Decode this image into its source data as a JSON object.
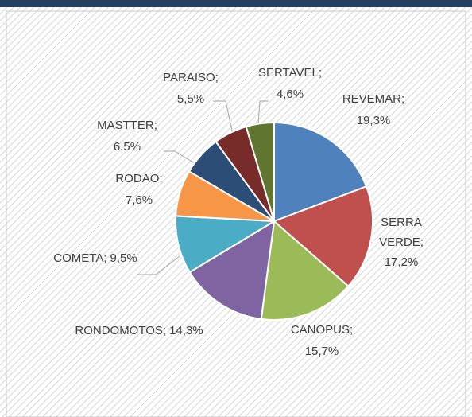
{
  "chart_data": {
    "type": "pie",
    "categories": [
      "REVEMAR;",
      "SERRA VERDE;",
      "CANOPUS;",
      "RONDOMOTOS;",
      "COMETA;",
      "RODAO;",
      "MASTTER;",
      "PARAISO;",
      "SERTAVEL;"
    ],
    "values": [
      19.3,
      17.2,
      15.7,
      14.3,
      9.5,
      7.6,
      6.5,
      5.5,
      4.6
    ],
    "value_labels": [
      "19,3%",
      "17,2%",
      "15,7%",
      "14,3%",
      "9,5%",
      "7,6%",
      "6,5%",
      "5,5%",
      "4,6%"
    ],
    "colors": [
      "#4f81bd",
      "#c0504d",
      "#9bbb59",
      "#8064a2",
      "#4bacc6",
      "#f79646",
      "#2c4d75",
      "#772c2a",
      "#5f7530"
    ]
  }
}
